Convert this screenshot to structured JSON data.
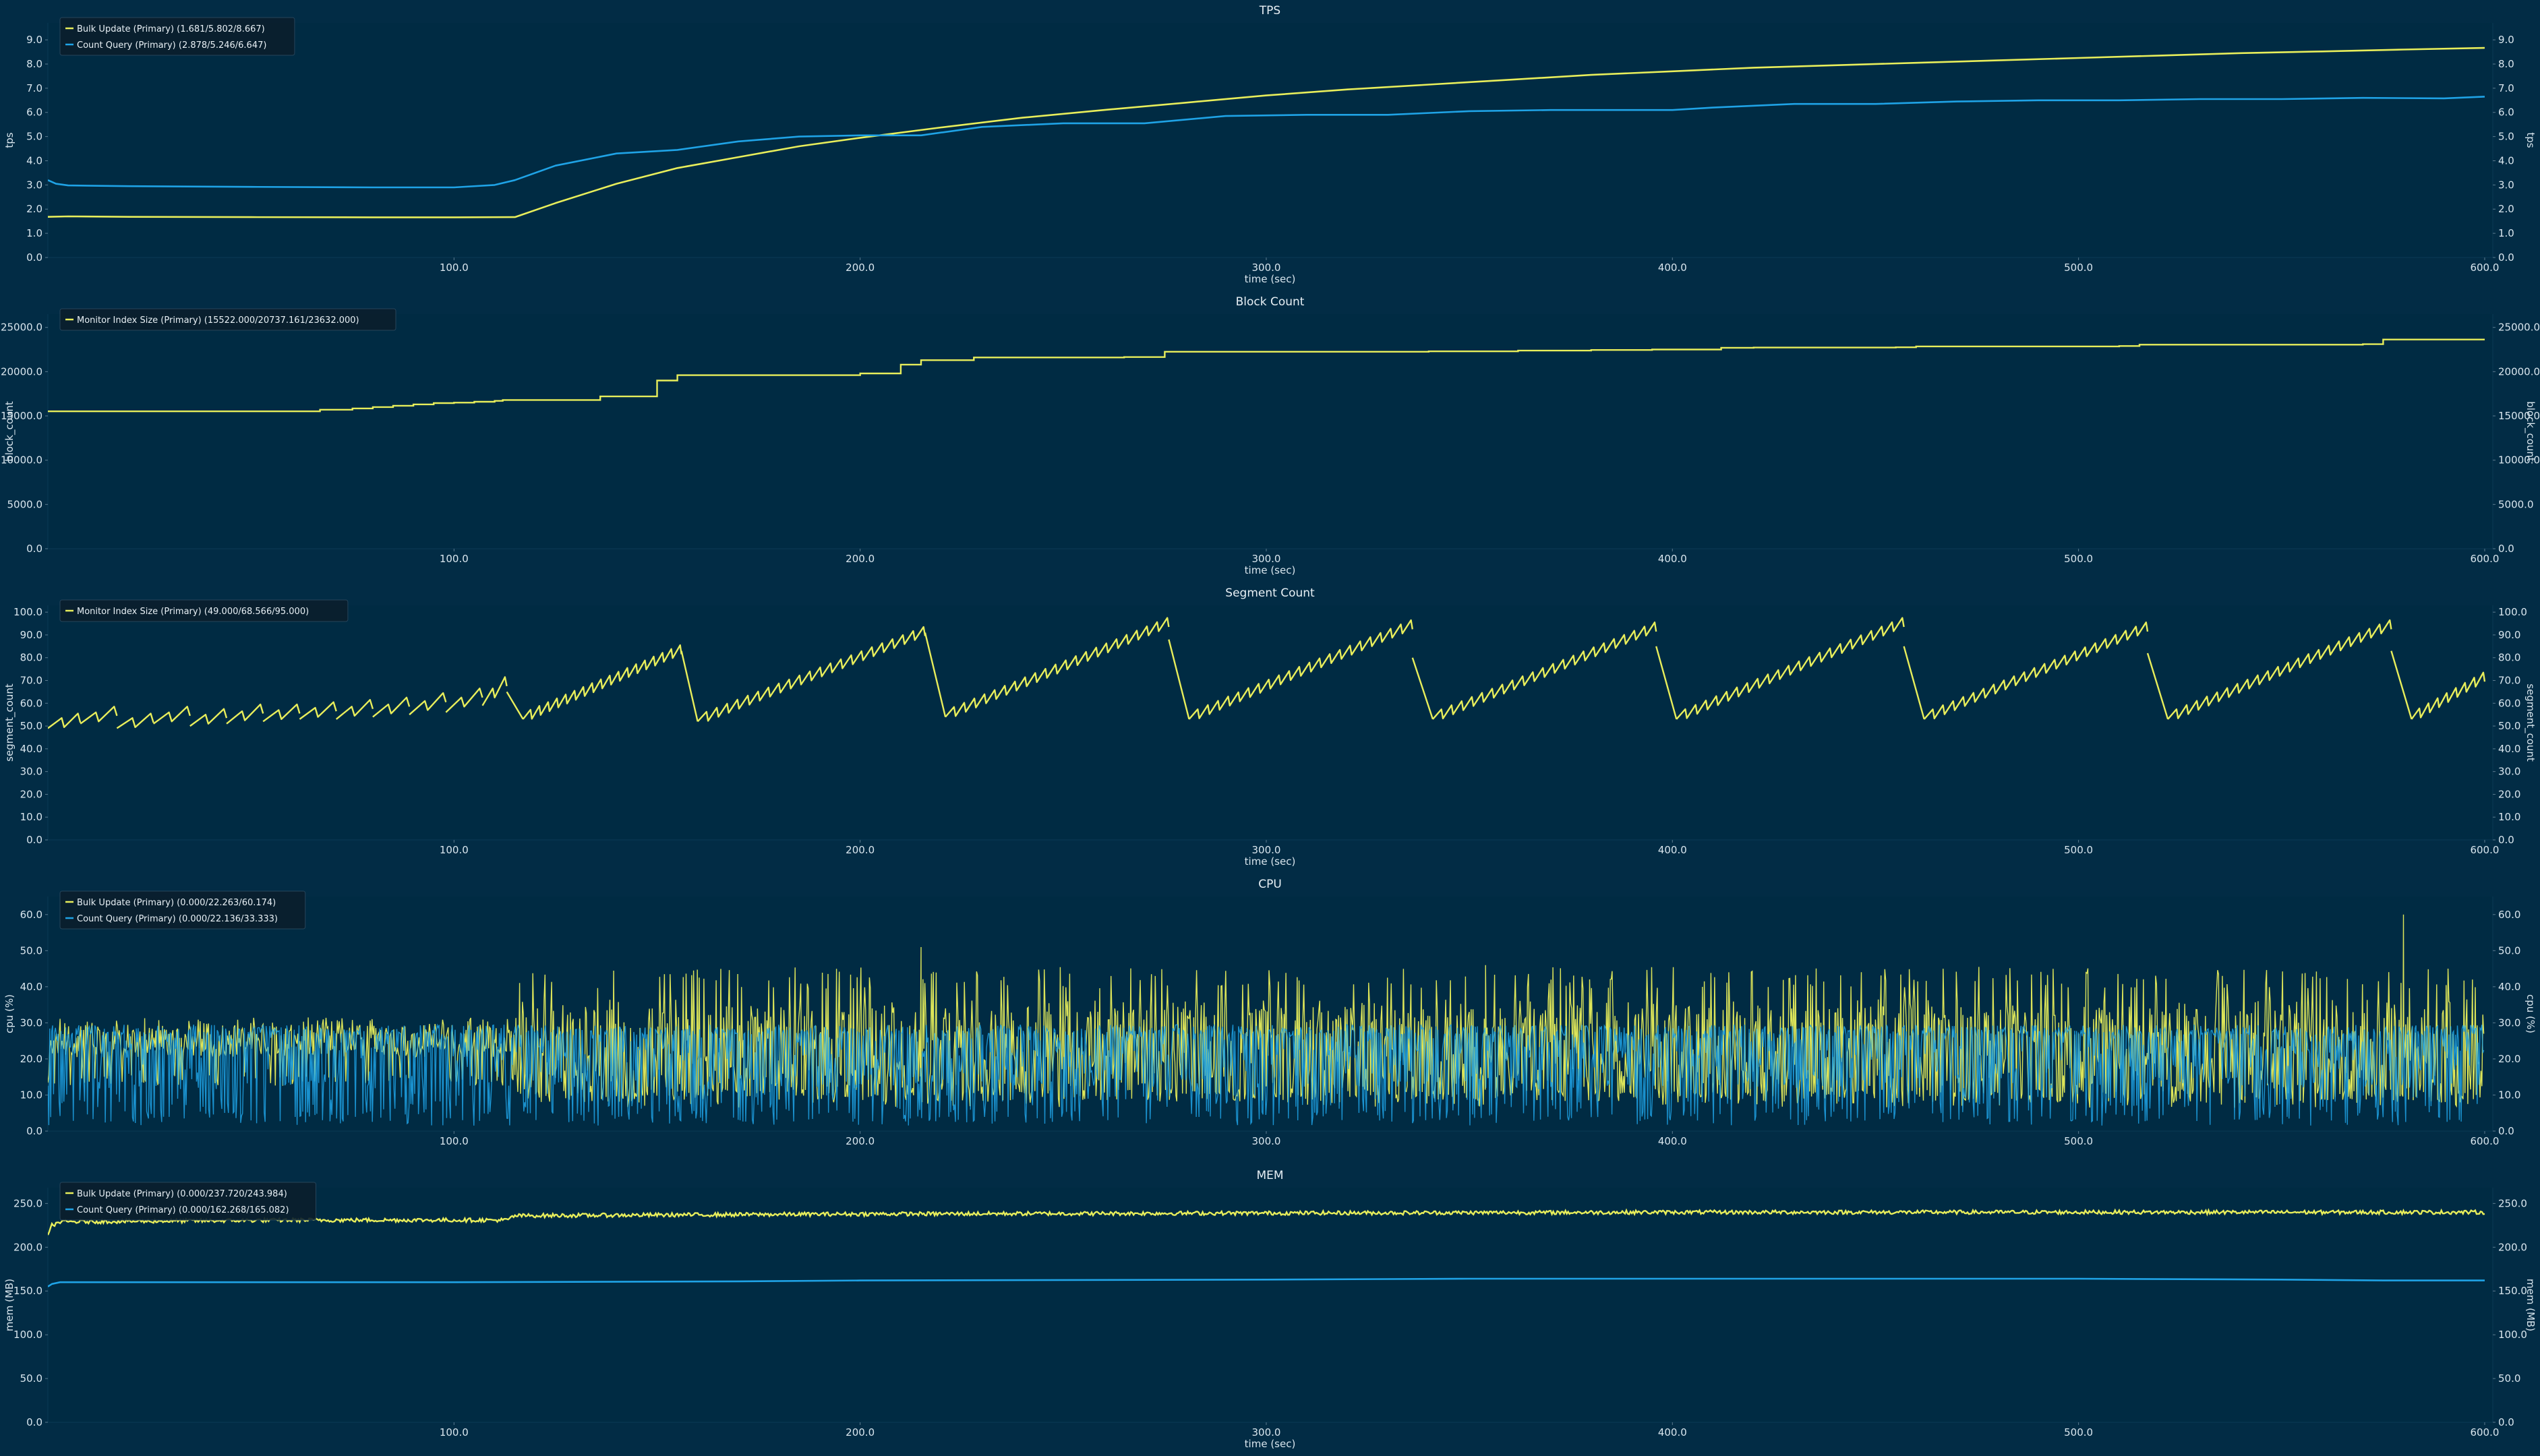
{
  "colors": {
    "background": "#002b43",
    "yellow": "#e8ee5b",
    "blue": "#1fa3e6",
    "text": "#d9e6ee"
  },
  "chart_data": [
    {
      "id": "tps",
      "type": "line",
      "title": "TPS",
      "xlabel": "time (sec)",
      "ylabel": "tps",
      "right_ylabel": "tps",
      "xlim": [
        0,
        602
      ],
      "ylim": [
        0,
        9.7
      ],
      "xticks": [
        "100.0",
        "200.0",
        "300.0",
        "400.0",
        "500.0",
        "600.0"
      ],
      "yticks": [
        "0.0",
        "1.0",
        "2.0",
        "3.0",
        "4.0",
        "5.0",
        "6.0",
        "7.0",
        "8.0",
        "9.0"
      ],
      "grid": false,
      "legend_position": "top-left",
      "series": [
        {
          "name": "Bulk Update (Primary) (1.681/5.802/8.667)",
          "color": "#e8ee5b",
          "style": "line",
          "x": [
            0,
            5,
            20,
            50,
            80,
            100,
            115,
            125,
            140,
            155,
            170,
            185,
            200,
            220,
            240,
            260,
            280,
            300,
            320,
            340,
            360,
            380,
            400,
            420,
            440,
            460,
            480,
            500,
            520,
            540,
            560,
            580,
            600
          ],
          "y": [
            1.68,
            1.7,
            1.68,
            1.67,
            1.66,
            1.66,
            1.67,
            2.25,
            3.05,
            3.7,
            4.15,
            4.6,
            4.95,
            5.38,
            5.78,
            6.1,
            6.4,
            6.7,
            6.95,
            7.15,
            7.35,
            7.55,
            7.7,
            7.85,
            7.95,
            8.05,
            8.15,
            8.25,
            8.35,
            8.45,
            8.52,
            8.6,
            8.67
          ]
        },
        {
          "name": "Count Query (Primary) (2.878/5.246/6.647)",
          "color": "#1fa3e6",
          "style": "line",
          "x": [
            0,
            2,
            5,
            20,
            50,
            80,
            100,
            110,
            115,
            125,
            140,
            155,
            170,
            185,
            200,
            215,
            230,
            250,
            270,
            290,
            310,
            330,
            350,
            370,
            390,
            400,
            410,
            430,
            450,
            470,
            490,
            510,
            530,
            550,
            570,
            590,
            600
          ],
          "y": [
            3.2,
            3.05,
            2.98,
            2.95,
            2.92,
            2.9,
            2.9,
            3.0,
            3.2,
            3.8,
            4.3,
            4.45,
            4.8,
            5.0,
            5.05,
            5.05,
            5.4,
            5.55,
            5.55,
            5.85,
            5.9,
            5.9,
            6.05,
            6.1,
            6.1,
            6.1,
            6.2,
            6.35,
            6.35,
            6.45,
            6.5,
            6.5,
            6.55,
            6.55,
            6.6,
            6.58,
            6.65
          ]
        }
      ]
    },
    {
      "id": "block_count",
      "type": "line",
      "title": "Block Count",
      "xlabel": "time (sec)",
      "ylabel": "block_count",
      "right_ylabel": "block_count",
      "xlim": [
        0,
        602
      ],
      "ylim": [
        0,
        26500
      ],
      "xticks": [
        "100.0",
        "200.0",
        "300.0",
        "400.0",
        "500.0",
        "600.0"
      ],
      "yticks": [
        "0.0",
        "5000.0",
        "10000.0",
        "15000.0",
        "20000.0",
        "25000.0"
      ],
      "grid": false,
      "legend_position": "top-left",
      "series": [
        {
          "name": "Monitor Index Size (Primary) (15522.000/20737.161/23632.000)",
          "color": "#e8ee5b",
          "style": "step",
          "x": [
            0,
            60,
            67,
            75,
            80,
            85,
            90,
            95,
            100,
            105,
            110,
            112,
            130,
            136,
            150,
            155,
            175,
            195,
            200,
            210,
            215,
            228,
            265,
            275,
            340,
            362,
            380,
            395,
            412,
            420,
            455,
            460,
            510,
            515,
            570,
            575,
            600
          ],
          "y": [
            15522,
            15522,
            15700,
            15850,
            16000,
            16150,
            16300,
            16450,
            16500,
            16600,
            16700,
            16800,
            16800,
            17200,
            19000,
            19600,
            19600,
            19600,
            19800,
            20800,
            21300,
            21600,
            21650,
            22250,
            22300,
            22380,
            22450,
            22500,
            22700,
            22720,
            22750,
            22850,
            22900,
            23050,
            23100,
            23632,
            23632
          ]
        }
      ]
    },
    {
      "id": "segment_count",
      "type": "line",
      "title": "Segment Count",
      "xlabel": "time (sec)",
      "ylabel": "segment_count",
      "right_ylabel": "segment_count",
      "xlim": [
        0,
        602
      ],
      "ylim": [
        0,
        103
      ],
      "xticks": [
        "100.0",
        "200.0",
        "300.0",
        "400.0",
        "500.0",
        "600.0"
      ],
      "yticks": [
        "0.0",
        "10.0",
        "20.0",
        "30.0",
        "40.0",
        "50.0",
        "60.0",
        "70.0",
        "80.0",
        "90.0",
        "100.0"
      ],
      "grid": false,
      "legend_position": "top-left",
      "series": [
        {
          "name": "Monitor Index Size (Primary) (49.000/68.566/95.000)",
          "color": "#e8ee5b",
          "style": "sawtooth",
          "segments": [
            {
              "x0": 0,
              "x1": 8,
              "y0": 49,
              "y1": 53,
              "teeth": 2
            },
            {
              "x0": 8,
              "x1": 17,
              "y0": 51,
              "y1": 56,
              "teeth": 2
            },
            {
              "x0": 17,
              "x1": 26,
              "y0": 49,
              "y1": 53,
              "teeth": 2
            },
            {
              "x0": 26,
              "x1": 35,
              "y0": 51,
              "y1": 56,
              "teeth": 2
            },
            {
              "x0": 35,
              "x1": 44,
              "y0": 50,
              "y1": 55,
              "teeth": 2
            },
            {
              "x0": 44,
              "x1": 53,
              "y0": 51,
              "y1": 57,
              "teeth": 2
            },
            {
              "x0": 53,
              "x1": 62,
              "y0": 52,
              "y1": 57,
              "teeth": 2
            },
            {
              "x0": 62,
              "x1": 71,
              "y0": 53,
              "y1": 58,
              "teeth": 2
            },
            {
              "x0": 71,
              "x1": 80,
              "y0": 53,
              "y1": 59,
              "teeth": 2
            },
            {
              "x0": 80,
              "x1": 89,
              "y0": 54,
              "y1": 60,
              "teeth": 2
            },
            {
              "x0": 89,
              "x1": 98,
              "y0": 55,
              "y1": 62,
              "teeth": 2
            },
            {
              "x0": 98,
              "x1": 107,
              "y0": 56,
              "y1": 64,
              "teeth": 2
            },
            {
              "x0": 107,
              "x1": 113,
              "y0": 59,
              "y1": 69,
              "teeth": 2
            },
            {
              "x0": 113,
              "x1": 117,
              "y0": 65,
              "y1": 53,
              "teeth": 1
            },
            {
              "x0": 117,
              "x1": 156,
              "y0": 53,
              "y1": 83,
              "teeth": 18
            },
            {
              "x0": 156,
              "x1": 160,
              "y0": 83,
              "y1": 52,
              "teeth": 1
            },
            {
              "x0": 160,
              "x1": 216,
              "y0": 52,
              "y1": 91,
              "teeth": 22
            },
            {
              "x0": 216,
              "x1": 221,
              "y0": 91,
              "y1": 54,
              "teeth": 1
            },
            {
              "x0": 221,
              "x1": 276,
              "y0": 54,
              "y1": 95,
              "teeth": 22
            },
            {
              "x0": 276,
              "x1": 281,
              "y0": 88,
              "y1": 53,
              "teeth": 1
            },
            {
              "x0": 281,
              "x1": 336,
              "y0": 53,
              "y1": 94,
              "teeth": 22
            },
            {
              "x0": 336,
              "x1": 341,
              "y0": 80,
              "y1": 53,
              "teeth": 1
            },
            {
              "x0": 341,
              "x1": 396,
              "y0": 53,
              "y1": 93,
              "teeth": 22
            },
            {
              "x0": 396,
              "x1": 401,
              "y0": 85,
              "y1": 53,
              "teeth": 1
            },
            {
              "x0": 401,
              "x1": 457,
              "y0": 53,
              "y1": 95,
              "teeth": 22
            },
            {
              "x0": 457,
              "x1": 462,
              "y0": 85,
              "y1": 53,
              "teeth": 1
            },
            {
              "x0": 462,
              "x1": 517,
              "y0": 53,
              "y1": 93,
              "teeth": 22
            },
            {
              "x0": 517,
              "x1": 522,
              "y0": 82,
              "y1": 53,
              "teeth": 1
            },
            {
              "x0": 522,
              "x1": 577,
              "y0": 53,
              "y1": 94,
              "teeth": 22
            },
            {
              "x0": 577,
              "x1": 582,
              "y0": 83,
              "y1": 53,
              "teeth": 1
            },
            {
              "x0": 582,
              "x1": 600,
              "y0": 53,
              "y1": 71,
              "teeth": 8
            }
          ]
        }
      ]
    },
    {
      "id": "cpu",
      "type": "line",
      "title": "CPU",
      "xlabel": "",
      "ylabel": "cpu (%)",
      "right_ylabel": "cpu (%)",
      "xlim": [
        0,
        602
      ],
      "ylim": [
        0,
        65
      ],
      "xticks": [
        "100.0",
        "200.0",
        "300.0",
        "400.0",
        "500.0",
        "600.0"
      ],
      "yticks": [
        "0.0",
        "10.0",
        "20.0",
        "30.0",
        "40.0",
        "50.0",
        "60.0"
      ],
      "grid": false,
      "legend_position": "top-left",
      "series": [
        {
          "name": "Bulk Update (Primary) (0.000/22.263/60.174)",
          "color": "#e8ee5b",
          "style": "noise",
          "phases": [
            {
              "x0": 0,
              "x1": 115,
              "values": [
                22,
                24,
                27,
                23,
                28,
                14,
                22,
                26,
                30
              ]
            },
            {
              "x0": 115,
              "x1": 600,
              "values": [
                8,
                22,
                12,
                30,
                33,
                14,
                41,
                10,
                26,
                9,
                18,
                35,
                11,
                44,
                20,
                10,
                27,
                16,
                32
              ]
            }
          ],
          "peaks": [
            {
              "x": 215,
              "y": 51
            },
            {
              "x": 580,
              "y": 60
            },
            {
              "x": 354,
              "y": 46
            }
          ]
        },
        {
          "name": "Count Query (Primary) (0.000/22.136/33.333)",
          "color": "#1fa3e6",
          "style": "noise",
          "phases": [
            {
              "x0": 0,
              "x1": 600,
              "values": [
                28,
                6,
                22,
                28,
                13,
                28,
                4,
                21,
                27,
                17,
                28,
                9,
                28,
                24,
                14,
                28,
                3,
                26
              ]
            }
          ],
          "peaks": []
        }
      ]
    },
    {
      "id": "mem",
      "type": "line",
      "title": "MEM",
      "xlabel": "time (sec)",
      "ylabel": "mem (MB)",
      "right_ylabel": "mem (MB)",
      "xlim": [
        0,
        602
      ],
      "ylim": [
        0,
        268
      ],
      "xticks": [
        "100.0",
        "200.0",
        "300.0",
        "400.0",
        "500.0",
        "600.0"
      ],
      "yticks": [
        "0.0",
        "50.0",
        "100.0",
        "150.0",
        "200.0",
        "250.0"
      ],
      "grid": false,
      "legend_position": "top-left",
      "series": [
        {
          "name": "Bulk Update (Primary) (0.000/237.720/243.984)",
          "color": "#e8ee5b",
          "style": "jitter",
          "jitter": 2.2,
          "x": [
            0,
            1,
            3,
            30,
            60,
            100,
            113,
            115,
            200,
            300,
            400,
            500,
            600
          ],
          "y": [
            212,
            225,
            229,
            230,
            231,
            231,
            231,
            236,
            238,
            239,
            240,
            240,
            240
          ]
        },
        {
          "name": "Count Query (Primary) (0.000/162.268/165.082)",
          "color": "#1fa3e6",
          "style": "line",
          "x": [
            0,
            1,
            3,
            100,
            170,
            200,
            300,
            350,
            400,
            450,
            500,
            550,
            575,
            600
          ],
          "y": [
            155,
            158,
            160,
            160,
            161,
            162,
            163,
            164,
            164,
            164,
            164,
            163,
            162,
            162
          ]
        }
      ]
    }
  ]
}
